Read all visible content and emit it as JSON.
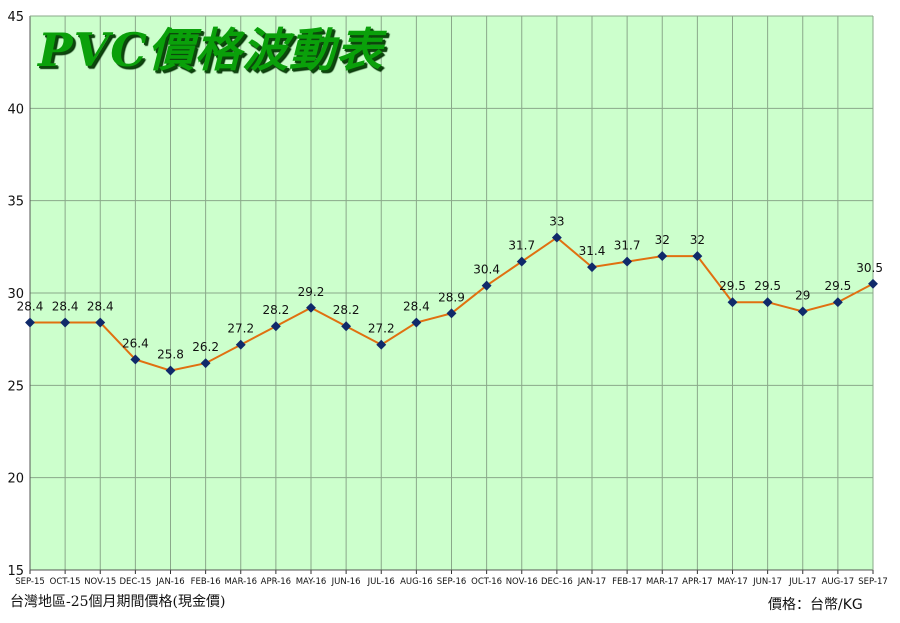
{
  "chart_data": {
    "type": "line",
    "title": "PVC價格波動表",
    "footnote_left": "台灣地區-25個月期間價格(現金價)",
    "footnote_right": "價格：台幣/KG",
    "categories": [
      "SEP-15",
      "OCT-15",
      "NOV-15",
      "DEC-15",
      "JAN-16",
      "FEB-16",
      "MAR-16",
      "APR-16",
      "MAY-16",
      "JUN-16",
      "JUL-16",
      "AUG-16",
      "SEP-16",
      "OCT-16",
      "NOV-16",
      "DEC-16",
      "JAN-17",
      "FEB-17",
      "MAR-17",
      "APR-17",
      "MAY-17",
      "JUN-17",
      "JUL-17",
      "AUG-17",
      "SEP-17"
    ],
    "values": [
      28.4,
      28.4,
      28.4,
      26.4,
      25.8,
      26.2,
      27.2,
      28.2,
      29.2,
      28.2,
      27.2,
      28.4,
      28.9,
      30.4,
      31.7,
      33,
      31.4,
      31.7,
      32,
      32,
      29.5,
      29.5,
      29,
      29.5,
      30.5
    ],
    "data_labels": [
      "28.4",
      "28.4",
      "28.4",
      "26.4",
      "25.8",
      "26.2",
      "27.2",
      "28.2",
      "29.2",
      "28.2",
      "27.2",
      "28.4",
      "28.9",
      "30.4",
      "31.7",
      "33",
      "31.4",
      "31.7",
      "32",
      "32",
      "29.5",
      "29.5",
      "29",
      "29.5",
      "30.5"
    ],
    "ylim": [
      15,
      45
    ],
    "y_ticks": [
      15,
      20,
      25,
      30,
      35,
      40,
      45
    ],
    "grid": true,
    "colors": {
      "plot_bg": "#ccffcc",
      "grid": "#8aa88a",
      "line": "#e07010",
      "marker": "#102a6a",
      "title": "#0aa00a"
    }
  }
}
